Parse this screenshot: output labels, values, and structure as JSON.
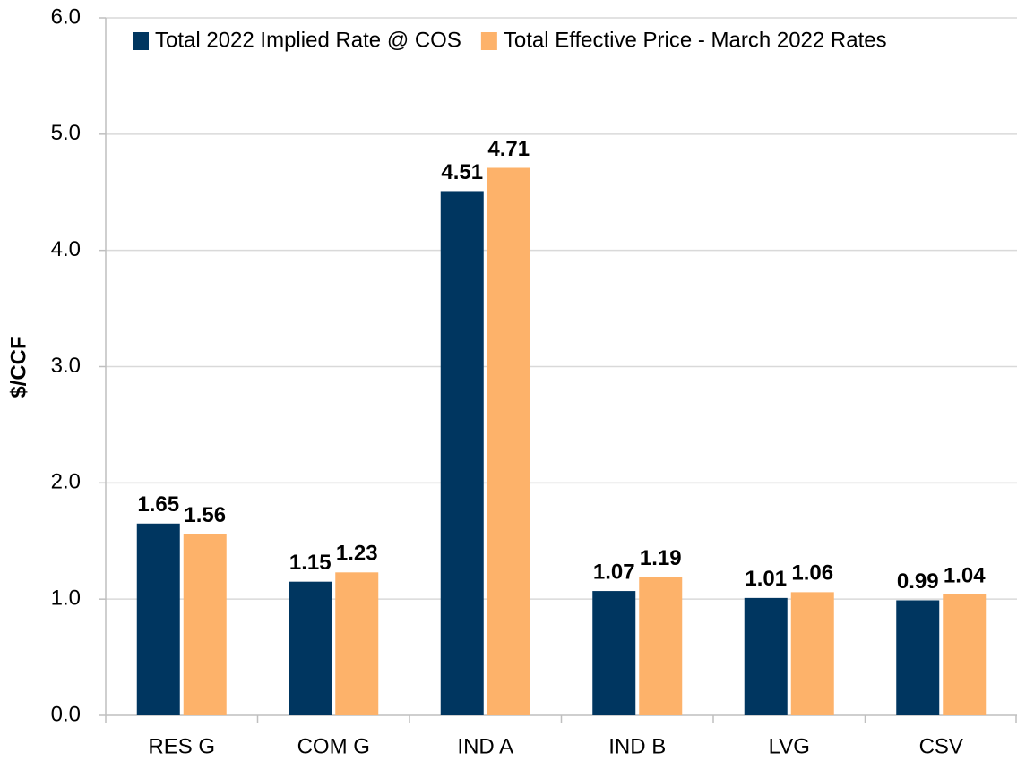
{
  "chart_data": {
    "type": "bar",
    "y_label": "$/CCF",
    "categories": [
      "RES G",
      "COM G",
      "IND A",
      "IND B",
      "LVG",
      "CSV"
    ],
    "series": [
      {
        "name": "Total 2022 Implied Rate @ COS",
        "color": "#003660",
        "values": [
          1.65,
          1.15,
          4.51,
          1.07,
          1.01,
          0.99
        ]
      },
      {
        "name": "Total Effective Price - March 2022 Rates",
        "color": "#fdb26a",
        "values": [
          1.56,
          1.23,
          4.71,
          1.19,
          1.06,
          1.04
        ]
      }
    ],
    "ylim": [
      0,
      6
    ],
    "yticks": [
      {
        "value": 0,
        "label": "0.0"
      },
      {
        "value": 1,
        "label": "1.0"
      },
      {
        "value": 2,
        "label": "2.0"
      },
      {
        "value": 3,
        "label": "3.0"
      },
      {
        "value": 4,
        "label": "4.0"
      },
      {
        "value": 5,
        "label": "5.0"
      },
      {
        "value": 6,
        "label": "6.0"
      }
    ],
    "grid": true,
    "legend": "top"
  }
}
